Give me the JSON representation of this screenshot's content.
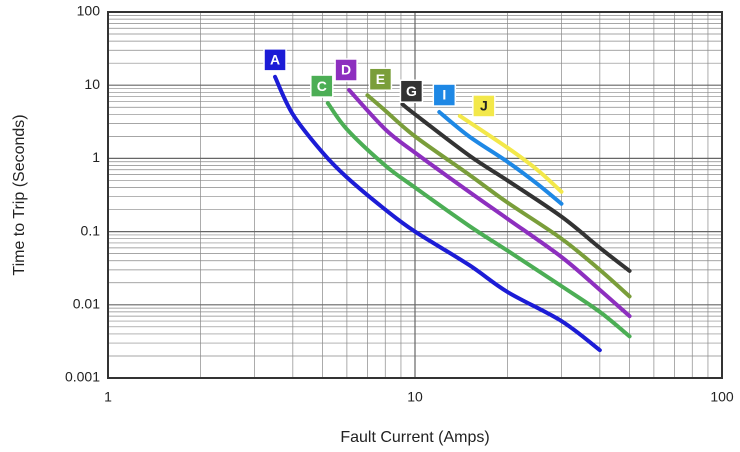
{
  "chart_data": {
    "type": "line",
    "xlabel": "Fault Current (Amps)",
    "ylabel": "Time to Trip (Seconds)",
    "log_x": true,
    "log_y": true,
    "grid": true,
    "minor_grid": true,
    "xlim": [
      1,
      100
    ],
    "xticks": [
      1,
      10,
      100
    ],
    "ylim": [
      0.001,
      100
    ],
    "yticks": [
      0.001,
      0.01,
      0.1,
      1,
      10,
      100
    ],
    "series": [
      {
        "name": "A",
        "color": "#1c1cd6",
        "x": [
          3.5,
          4,
          5,
          6,
          8,
          10,
          15,
          20,
          30,
          40
        ],
        "values": [
          13,
          4,
          1.2,
          0.55,
          0.2,
          0.1,
          0.035,
          0.015,
          0.006,
          0.0024
        ]
      },
      {
        "name": "C",
        "color": "#4cae55",
        "x": [
          5.2,
          6,
          8,
          10,
          15,
          20,
          30,
          40,
          50
        ],
        "values": [
          5.7,
          2.5,
          0.8,
          0.4,
          0.12,
          0.055,
          0.018,
          0.008,
          0.0037
        ]
      },
      {
        "name": "D",
        "color": "#8d2fbf",
        "x": [
          6.1,
          8,
          10,
          15,
          20,
          30,
          40,
          50
        ],
        "values": [
          8.6,
          2.5,
          1.2,
          0.35,
          0.15,
          0.045,
          0.016,
          0.007
        ]
      },
      {
        "name": "E",
        "color": "#7a9e3a",
        "x": [
          7,
          8,
          10,
          15,
          20,
          30,
          40,
          50
        ],
        "values": [
          7.3,
          4.5,
          2,
          0.6,
          0.25,
          0.08,
          0.03,
          0.013
        ]
      },
      {
        "name": "G",
        "color": "#333333",
        "x": [
          9.1,
          10,
          15,
          20,
          30,
          40,
          50
        ],
        "values": [
          5.5,
          4,
          1.1,
          0.5,
          0.16,
          0.06,
          0.029
        ]
      },
      {
        "name": "I",
        "color": "#1e88e5",
        "x": [
          12,
          15,
          20,
          25,
          30
        ],
        "values": [
          4.3,
          2,
          0.9,
          0.45,
          0.24
        ]
      },
      {
        "name": "J",
        "color": "#f3e84a",
        "x": [
          14,
          20,
          25,
          30
        ],
        "values": [
          3.8,
          1.4,
          0.7,
          0.35
        ]
      }
    ]
  }
}
